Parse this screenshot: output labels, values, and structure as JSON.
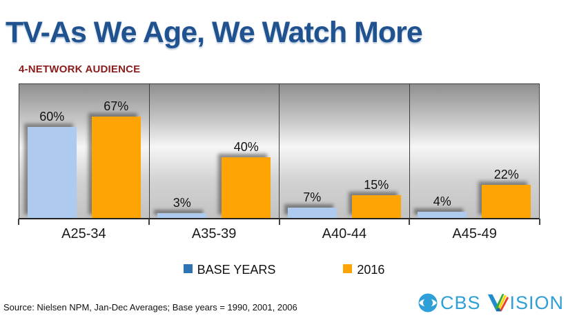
{
  "header": {
    "title": "TV-As We Age, We Watch More",
    "subtitle": "4-NETWORK AUDIENCE"
  },
  "chart_data": {
    "type": "bar",
    "title": "4-NETWORK AUDIENCE",
    "categories": [
      "A25-34",
      "A35-39",
      "A40-44",
      "A45-49"
    ],
    "series": [
      {
        "name": "BASE YEARS",
        "values": [
          60,
          3,
          7,
          4
        ]
      },
      {
        "name": "2016",
        "values": [
          67,
          40,
          15,
          22
        ]
      }
    ],
    "value_suffix": "%",
    "ylim": [
      0,
      90
    ],
    "grid": false,
    "value_labels": true,
    "legend_position": "bottom"
  },
  "legend": {
    "items": [
      {
        "label": "BASE YEARS",
        "color": "#2E74B5"
      },
      {
        "label": "2016",
        "color": "#FFA405"
      }
    ]
  },
  "footer": {
    "source": "Source: Nielsen NPM, Jan-Dec Averages; Base years = 1990, 2001, 2006"
  },
  "logo": {
    "brand": "CBS",
    "product": "VISION"
  },
  "colors": {
    "title": "#20528F",
    "subtitle": "#8B1B1B",
    "bar_base_years": "#AECBEF",
    "bar_2016": "#FFA405",
    "logo_blue": "#2E9FD7"
  }
}
